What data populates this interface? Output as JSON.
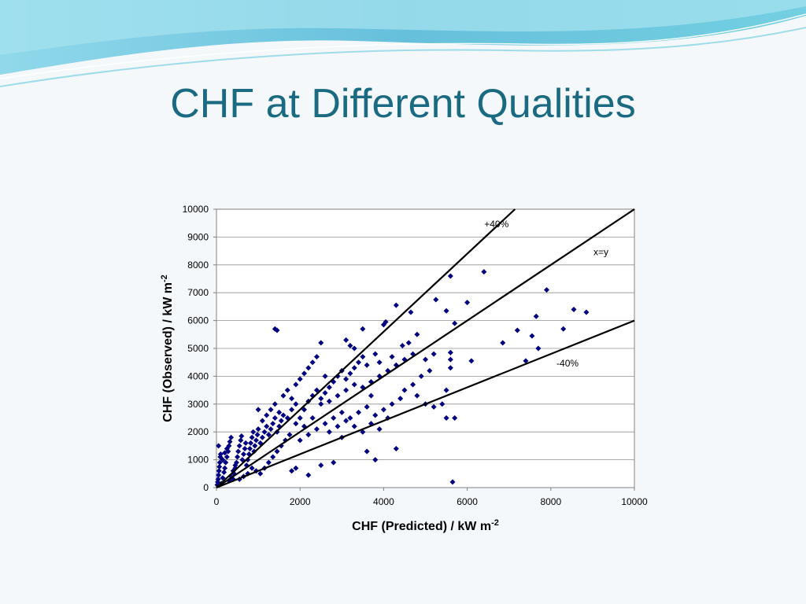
{
  "slide": {
    "title": "CHF at Different Qualities"
  },
  "colors": {
    "title": "#1a6a82",
    "points": "#000080",
    "lines": "#000000"
  },
  "chart_data": {
    "type": "scatter",
    "xlabel": "CHF (Predicted) / kW m",
    "xlabel_sup": "-2",
    "ylabel": "CHF (Observed) / kW m",
    "ylabel_sup": "-2",
    "xlim": [
      0,
      10000
    ],
    "ylim": [
      0,
      10000
    ],
    "xticks": [
      "0",
      "2000",
      "4000",
      "6000",
      "8000",
      "10000"
    ],
    "yticks": [
      "0",
      "1000",
      "2000",
      "3000",
      "4000",
      "5000",
      "6000",
      "7000",
      "8000",
      "9000",
      "10000"
    ],
    "grid": "horizontal",
    "reference_lines": [
      {
        "label": "+40%",
        "slope": 1.4
      },
      {
        "label": "x=y",
        "slope": 1.0
      },
      {
        "label": "-40%",
        "slope": 0.6
      }
    ],
    "points": [
      [
        20,
        100
      ],
      [
        30,
        200
      ],
      [
        40,
        300
      ],
      [
        50,
        450
      ],
      [
        60,
        600
      ],
      [
        70,
        750
      ],
      [
        80,
        900
      ],
      [
        90,
        1100
      ],
      [
        100,
        1200
      ],
      [
        50,
        1500
      ],
      [
        120,
        150
      ],
      [
        150,
        350
      ],
      [
        180,
        550
      ],
      [
        200,
        700
      ],
      [
        220,
        900
      ],
      [
        250,
        1100
      ],
      [
        280,
        1300
      ],
      [
        300,
        1500
      ],
      [
        320,
        1650
      ],
      [
        350,
        1800
      ],
      [
        150,
        1000
      ],
      [
        200,
        1250
      ],
      [
        250,
        1400
      ],
      [
        400,
        300
      ],
      [
        420,
        500
      ],
      [
        450,
        700
      ],
      [
        480,
        900
      ],
      [
        500,
        1100
      ],
      [
        520,
        1300
      ],
      [
        550,
        1500
      ],
      [
        580,
        1700
      ],
      [
        600,
        1850
      ],
      [
        620,
        1000
      ],
      [
        650,
        1200
      ],
      [
        680,
        1400
      ],
      [
        700,
        1600
      ],
      [
        720,
        800
      ],
      [
        750,
        1000
      ],
      [
        780,
        1200
      ],
      [
        800,
        1400
      ],
      [
        820,
        1600
      ],
      [
        850,
        1800
      ],
      [
        880,
        2000
      ],
      [
        900,
        1300
      ],
      [
        920,
        1500
      ],
      [
        950,
        1700
      ],
      [
        980,
        1900
      ],
      [
        1000,
        2100
      ],
      [
        1050,
        1600
      ],
      [
        1100,
        1800
      ],
      [
        1150,
        2000
      ],
      [
        1200,
        2200
      ],
      [
        1250,
        1900
      ],
      [
        1300,
        2100
      ],
      [
        1350,
        2300
      ],
      [
        1400,
        2500
      ],
      [
        1450,
        2000
      ],
      [
        1500,
        2200
      ],
      [
        1550,
        2400
      ],
      [
        1600,
        2600
      ],
      [
        1100,
        2400
      ],
      [
        1200,
        2600
      ],
      [
        1300,
        2800
      ],
      [
        1400,
        3000
      ],
      [
        1000,
        2800
      ],
      [
        1500,
        2700
      ],
      [
        1700,
        2500
      ],
      [
        1800,
        2800
      ],
      [
        1900,
        3000
      ],
      [
        2000,
        2500
      ],
      [
        2100,
        2800
      ],
      [
        2200,
        3100
      ],
      [
        2300,
        3300
      ],
      [
        2400,
        3500
      ],
      [
        2500,
        3200
      ],
      [
        2600,
        3400
      ],
      [
        2700,
        3600
      ],
      [
        2800,
        3800
      ],
      [
        2900,
        4000
      ],
      [
        3000,
        4200
      ],
      [
        3100,
        3900
      ],
      [
        3200,
        4100
      ],
      [
        3300,
        4300
      ],
      [
        3400,
        4500
      ],
      [
        3500,
        4700
      ],
      [
        1600,
        3300
      ],
      [
        1700,
        3500
      ],
      [
        1800,
        3200
      ],
      [
        1900,
        3700
      ],
      [
        2000,
        3900
      ],
      [
        2100,
        4100
      ],
      [
        2200,
        4300
      ],
      [
        2300,
        4500
      ],
      [
        2400,
        4700
      ],
      [
        2500,
        5200
      ],
      [
        3100,
        5300
      ],
      [
        3200,
        5100
      ],
      [
        3500,
        5700
      ],
      [
        3300,
        5000
      ],
      [
        3600,
        4400
      ],
      [
        1400,
        5700
      ],
      [
        1450,
        5650
      ],
      [
        1800,
        600
      ],
      [
        1900,
        700
      ],
      [
        2200,
        450
      ],
      [
        2500,
        800
      ],
      [
        2800,
        900
      ],
      [
        2000,
        1700
      ],
      [
        2200,
        1900
      ],
      [
        2400,
        2100
      ],
      [
        2600,
        2300
      ],
      [
        2800,
        2500
      ],
      [
        3000,
        2700
      ],
      [
        3200,
        2500
      ],
      [
        3400,
        2700
      ],
      [
        3600,
        2900
      ],
      [
        3800,
        2600
      ],
      [
        4000,
        2800
      ],
      [
        4200,
        3000
      ],
      [
        4400,
        3200
      ],
      [
        2700,
        2000
      ],
      [
        2900,
        2200
      ],
      [
        3100,
        2400
      ],
      [
        3300,
        2200
      ],
      [
        3500,
        2000
      ],
      [
        3700,
        2300
      ],
      [
        3900,
        2100
      ],
      [
        4100,
        2500
      ],
      [
        3600,
        1300
      ],
      [
        3800,
        1000
      ],
      [
        4300,
        1400
      ],
      [
        3000,
        1800
      ],
      [
        2500,
        3000
      ],
      [
        2700,
        3100
      ],
      [
        2900,
        3300
      ],
      [
        3100,
        3500
      ],
      [
        3300,
        3700
      ],
      [
        3500,
        3600
      ],
      [
        3700,
        3800
      ],
      [
        3900,
        4000
      ],
      [
        4100,
        4200
      ],
      [
        4300,
        4400
      ],
      [
        4500,
        4600
      ],
      [
        4700,
        4800
      ],
      [
        4000,
        5850
      ],
      [
        4050,
        5950
      ],
      [
        4300,
        6550
      ],
      [
        3800,
        4800
      ],
      [
        3900,
        4500
      ],
      [
        4200,
        4700
      ],
      [
        4600,
        5200
      ],
      [
        4800,
        5500
      ],
      [
        5000,
        4600
      ],
      [
        5200,
        4800
      ],
      [
        4700,
        3700
      ],
      [
        4900,
        4000
      ],
      [
        5100,
        4200
      ],
      [
        4500,
        3500
      ],
      [
        4800,
        3300
      ],
      [
        5000,
        3000
      ],
      [
        5200,
        2900
      ],
      [
        5400,
        3000
      ],
      [
        5500,
        3500
      ],
      [
        5500,
        2500
      ],
      [
        5700,
        2500
      ],
      [
        5600,
        4300
      ],
      [
        5600,
        4600
      ],
      [
        5600,
        4850
      ],
      [
        5700,
        5900
      ],
      [
        5500,
        6350
      ],
      [
        5250,
        6750
      ],
      [
        5600,
        7600
      ],
      [
        6400,
        7750
      ],
      [
        6000,
        6650
      ],
      [
        5650,
        200
      ],
      [
        6100,
        4550
      ],
      [
        6850,
        5200
      ],
      [
        7200,
        5650
      ],
      [
        7400,
        4550
      ],
      [
        7550,
        5450
      ],
      [
        7650,
        6150
      ],
      [
        7700,
        5000
      ],
      [
        7900,
        7100
      ],
      [
        8300,
        5700
      ],
      [
        8550,
        6400
      ],
      [
        8850,
        6300
      ],
      [
        4450,
        5100
      ],
      [
        4650,
        6300
      ],
      [
        2600,
        4000
      ],
      [
        3700,
        3300
      ],
      [
        2300,
        2500
      ],
      [
        2100,
        2200
      ],
      [
        1900,
        2300
      ],
      [
        1750,
        1900
      ],
      [
        1650,
        1700
      ],
      [
        1550,
        1500
      ],
      [
        1450,
        1300
      ],
      [
        1350,
        1100
      ],
      [
        1250,
        900
      ],
      [
        1150,
        700
      ],
      [
        1050,
        500
      ],
      [
        950,
        600
      ],
      [
        850,
        700
      ],
      [
        750,
        500
      ],
      [
        650,
        400
      ],
      [
        550,
        300
      ],
      [
        300,
        250
      ],
      [
        350,
        400
      ],
      [
        400,
        600
      ],
      [
        450,
        800
      ]
    ]
  }
}
